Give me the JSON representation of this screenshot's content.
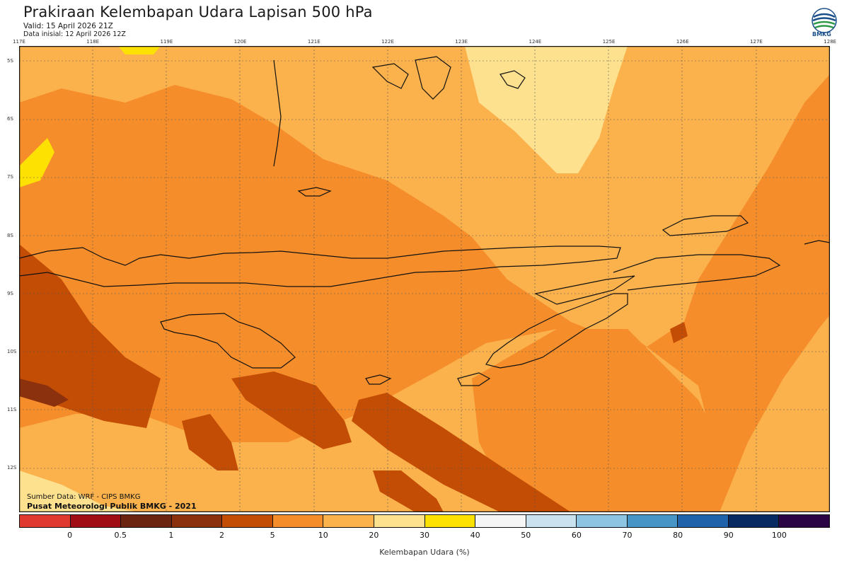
{
  "header": {
    "title": "Prakiraan Kelembapan Udara Lapisan 500 hPa",
    "valid": "Valid: 15 April 2026 21Z",
    "init": "Data inisial: 12 April 2026 12Z"
  },
  "logo": {
    "text": "BMKG",
    "icon": "bmkg-logo"
  },
  "lon_labels": [
    "117E",
    "118E",
    "119E",
    "120E",
    "121E",
    "122E",
    "123E",
    "124E",
    "125E",
    "126E",
    "127E",
    "128E"
  ],
  "lat_labels": [
    "5S",
    "6S",
    "7S",
    "8S",
    "9S",
    "10S",
    "11S",
    "12S"
  ],
  "credits": {
    "source": "Sumber Data: WRF - CIPS BMKG",
    "org": "Pusat Meteorologi Publik BMKG - 2021"
  },
  "colorbar": {
    "colors": [
      "#e03a30",
      "#a00d14",
      "#6b2410",
      "#8c310d",
      "#c44d05",
      "#f58e2a",
      "#fbb24d",
      "#fde18f",
      "#fde102",
      "#f5f5f5",
      "#c8e2f0",
      "#8dc4e2",
      "#4795c7",
      "#1f63ab",
      "#082a63",
      "#2b0445"
    ],
    "ticks": [
      "0",
      "0.5",
      "1",
      "2",
      "5",
      "10",
      "20",
      "30",
      "40",
      "50",
      "60",
      "70",
      "80",
      "90",
      "100"
    ],
    "label": "Kelembapan Udara (%)"
  }
}
